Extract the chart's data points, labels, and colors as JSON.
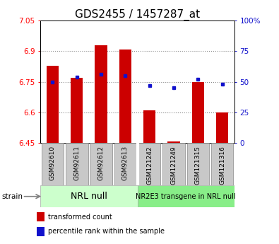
{
  "title": "GDS2455 / 1457287_at",
  "categories": [
    "GSM92610",
    "GSM92611",
    "GSM92612",
    "GSM92613",
    "GSM121242",
    "GSM121249",
    "GSM121315",
    "GSM121316"
  ],
  "red_values": [
    6.83,
    6.77,
    6.93,
    6.91,
    6.61,
    6.455,
    6.75,
    6.6
  ],
  "blue_values": [
    50,
    54,
    56,
    55,
    47,
    45,
    52,
    48
  ],
  "ylim_left": [
    6.45,
    7.05
  ],
  "ylim_right": [
    0,
    100
  ],
  "yticks_left": [
    6.45,
    6.6,
    6.75,
    6.9,
    7.05
  ],
  "yticks_right": [
    0,
    25,
    50,
    75,
    100
  ],
  "ytick_labels_left": [
    "6.45",
    "6.6",
    "6.75",
    "6.9",
    "7.05"
  ],
  "ytick_labels_right": [
    "0",
    "25",
    "50",
    "75",
    "100%"
  ],
  "group1_label": "NRL null",
  "group2_label": "NR2E3 transgene in NRL null",
  "strain_label": "strain",
  "legend_red": "transformed count",
  "legend_blue": "percentile rank within the sample",
  "bar_color": "#cc0000",
  "blue_color": "#1111cc",
  "bar_width": 0.5,
  "bar_bottom": 6.45,
  "group1_color": "#ccffcc",
  "group2_color": "#88ee88",
  "tick_label_bg": "#c8c8c8",
  "tick_label_border": "#888888",
  "dotted_line_color": "#888888",
  "title_fontsize": 11,
  "tick_fontsize": 7.5,
  "cat_fontsize": 6.5,
  "legend_fontsize": 7,
  "group_fontsize_1": 9,
  "group_fontsize_2": 7
}
